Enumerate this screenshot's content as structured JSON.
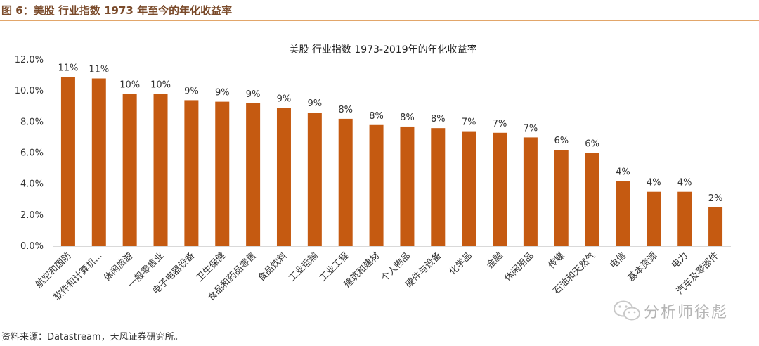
{
  "figure": {
    "caption": "图 6：美股  行业指数  1973 年至今的年化收益率",
    "source": "资料来源：Datastream，天风证券研究所。",
    "watermark": "分析师徐彪"
  },
  "colors": {
    "bar": "#c55a11",
    "axis": "#d9d9d9",
    "rule": "#e2a66a",
    "caption": "#7a4a2a"
  },
  "chart_data": {
    "type": "bar",
    "title": "美股 行业指数 1973-2019年的年化收益率",
    "categories": [
      "航空和国防",
      "软件和计算机...",
      "休闲旅游",
      "一般零售业",
      "电子电器设备",
      "卫生保健",
      "食品和药品零售",
      "食品饮料",
      "工业运输",
      "工业工程",
      "建筑和建材",
      "个人物品",
      "硬件与设备",
      "化学品",
      "金融",
      "休闲用品",
      "传媒",
      "石油和天然气",
      "电信",
      "基本资源",
      "电力",
      "汽车及零部件"
    ],
    "values": [
      10.9,
      10.8,
      9.8,
      9.8,
      9.4,
      9.3,
      9.2,
      8.9,
      8.6,
      8.2,
      7.8,
      7.7,
      7.6,
      7.4,
      7.3,
      7.0,
      6.2,
      6.0,
      4.2,
      3.5,
      3.5,
      2.5
    ],
    "data_labels": [
      "11%",
      "11%",
      "10%",
      "10%",
      "9%",
      "9%",
      "9%",
      "9%",
      "9%",
      "8%",
      "8%",
      "8%",
      "8%",
      "7%",
      "7%",
      "7%",
      "6%",
      "6%",
      "4%",
      "4%",
      "4%",
      "2%"
    ],
    "yticks": [
      "0.0%",
      "2.0%",
      "4.0%",
      "6.0%",
      "8.0%",
      "10.0%",
      "12.0%"
    ],
    "ylim": [
      0,
      12
    ],
    "xlabel": "",
    "ylabel": "",
    "grid": false,
    "legend": "none"
  }
}
